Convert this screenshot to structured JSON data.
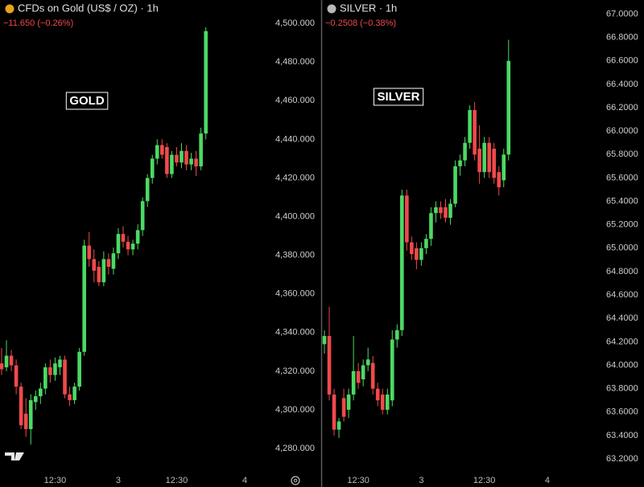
{
  "chart_data": [
    {
      "type": "candlestick",
      "title": "CFDs on Gold (US$ / OZ) · 1h",
      "subtitle": "−11.650 (−0.26%)",
      "annotation": "GOLD",
      "icon_color": "#e8a21a",
      "up_color": "#4cd964",
      "down_color": "#f0494c",
      "categories": [
        null,
        null,
        null,
        null,
        null,
        null,
        null,
        null,
        null,
        null,
        null,
        "12:30",
        null,
        null,
        null,
        null,
        null,
        null,
        null,
        null,
        null,
        null,
        null,
        null,
        "3",
        null,
        null,
        null,
        null,
        null,
        null,
        null,
        null,
        null,
        null,
        null,
        "12:30",
        null,
        null,
        null,
        null,
        null,
        null,
        null,
        null,
        null,
        null,
        null,
        null,
        null,
        "4"
      ],
      "open": [
        4324,
        4322,
        4328,
        4323,
        4312,
        4298,
        4290,
        4304,
        4307,
        4311,
        4322,
        4318,
        4322,
        4326,
        4308,
        4305,
        4312,
        4330,
        4385,
        4378,
        4374,
        4366,
        4378,
        4373,
        4381,
        4391,
        4387,
        4383,
        4386,
        4393,
        4408,
        4420,
        4430,
        4437,
        4436,
        4422,
        4432,
        4428,
        4434,
        4427,
        4430,
        4426,
        4443,
        null,
        null,
        null,
        null,
        null,
        null,
        null,
        null
      ],
      "high": [
        4332,
        4336,
        4331,
        4326,
        4314,
        4306,
        4308,
        4310,
        4314,
        4324,
        4326,
        4327,
        4328,
        4328,
        4312,
        4314,
        4332,
        4388,
        4392,
        4383,
        4377,
        4382,
        4381,
        4384,
        4394,
        4395,
        4390,
        4388,
        4396,
        4410,
        4422,
        4432,
        4440,
        4440,
        4438,
        4434,
        4436,
        4438,
        4437,
        4433,
        4434,
        4446,
        4498,
        null,
        null,
        null,
        null,
        null,
        null,
        null,
        null
      ],
      "low": [
        4318,
        4320,
        4320,
        4308,
        4290,
        4286,
        4282,
        4300,
        4303,
        4308,
        4314,
        4315,
        4318,
        4306,
        4302,
        4303,
        4310,
        4328,
        4374,
        4366,
        4364,
        4364,
        4370,
        4370,
        4378,
        4384,
        4380,
        4380,
        4383,
        4390,
        4405,
        4417,
        4427,
        4430,
        4420,
        4420,
        4426,
        4425,
        4424,
        4424,
        4421,
        4424,
        4440,
        null,
        null,
        null,
        null,
        null,
        null,
        null,
        null
      ],
      "close": [
        4321,
        4328,
        4323,
        4312,
        4292,
        4290,
        4305,
        4307,
        4311,
        4322,
        4318,
        4324,
        4326,
        4308,
        4305,
        4312,
        4330,
        4385,
        4378,
        4372,
        4366,
        4378,
        4374,
        4381,
        4391,
        4387,
        4383,
        4386,
        4393,
        4408,
        4420,
        4430,
        4437,
        4432,
        4422,
        4432,
        4428,
        4434,
        4427,
        4430,
        4426,
        4443,
        4496,
        null,
        null,
        null,
        null,
        null,
        null,
        null,
        null
      ],
      "ylim": [
        4266.7,
        4512.1
      ],
      "yticks": [
        {
          "value": 4280,
          "label": "4,280.000"
        },
        {
          "value": 4300,
          "label": "4,300.000"
        },
        {
          "value": 4320,
          "label": "4,320.000"
        },
        {
          "value": 4340,
          "label": "4,340.000"
        },
        {
          "value": 4360,
          "label": "4,360.000"
        },
        {
          "value": 4380,
          "label": "4,380.000"
        },
        {
          "value": 4400,
          "label": "4,400.000"
        },
        {
          "value": 4420,
          "label": "4,420.000"
        },
        {
          "value": 4440,
          "label": "4,440.000"
        },
        {
          "value": 4460,
          "label": "4,460.000"
        },
        {
          "value": 4480,
          "label": "4,480.000"
        },
        {
          "value": 4500,
          "label": "4,500.000"
        }
      ]
    },
    {
      "type": "candlestick",
      "title": "SILVER · 1h",
      "subtitle": "−0.2508 (−0.38%)",
      "annotation": "SILVER",
      "icon_color": "#b8b8b8",
      "up_color": "#4cd964",
      "down_color": "#f0494c",
      "categories": [
        null,
        null,
        null,
        null,
        null,
        null,
        null,
        "12:30",
        null,
        null,
        null,
        null,
        null,
        null,
        null,
        null,
        null,
        null,
        null,
        null,
        "3",
        null,
        null,
        null,
        null,
        null,
        null,
        null,
        null,
        null,
        null,
        null,
        null,
        "12:30",
        null,
        null,
        null,
        null,
        null,
        null,
        null,
        null,
        null,
        null,
        null,
        null,
        "4"
      ],
      "open": [
        64.18,
        64.25,
        63.75,
        63.45,
        63.72,
        63.62,
        63.75,
        63.95,
        63.88,
        64.0,
        64.02,
        63.8,
        63.75,
        63.62,
        63.7,
        64.22,
        64.3,
        65.45,
        65.05,
        65.0,
        64.9,
        65.0,
        65.08,
        65.3,
        65.35,
        65.35,
        65.26,
        65.38,
        65.7,
        65.75,
        65.9,
        66.18,
        65.85,
        65.65,
        65.9,
        65.85,
        65.65,
        65.58,
        65.8,
        null,
        null,
        null,
        null,
        null,
        null,
        null,
        null
      ],
      "high": [
        64.3,
        64.5,
        63.8,
        63.55,
        63.8,
        63.8,
        64.25,
        64.02,
        64.05,
        64.15,
        64.08,
        63.85,
        63.8,
        63.8,
        64.3,
        64.35,
        65.5,
        65.5,
        65.1,
        65.05,
        65.05,
        65.12,
        65.35,
        65.4,
        65.4,
        65.42,
        65.42,
        65.75,
        65.8,
        65.95,
        66.22,
        66.25,
        66.05,
        65.95,
        65.95,
        65.9,
        65.7,
        65.85,
        66.78,
        null,
        null,
        null,
        null,
        null,
        null,
        null,
        null
      ],
      "low": [
        64.1,
        63.7,
        63.4,
        63.38,
        63.52,
        63.55,
        63.7,
        63.8,
        63.82,
        63.95,
        63.75,
        63.65,
        63.58,
        63.58,
        63.65,
        64.15,
        64.25,
        64.98,
        64.9,
        64.82,
        64.85,
        64.95,
        65.02,
        65.22,
        65.25,
        65.22,
        65.2,
        65.35,
        65.62,
        65.7,
        65.85,
        65.75,
        65.55,
        65.6,
        65.6,
        65.55,
        65.45,
        65.52,
        65.75,
        null,
        null,
        null,
        null,
        null,
        null,
        null,
        null
      ],
      "close": [
        64.25,
        63.75,
        63.45,
        63.52,
        63.56,
        63.75,
        63.95,
        63.85,
        64.0,
        64.05,
        63.8,
        63.7,
        63.62,
        63.75,
        64.22,
        64.3,
        65.45,
        65.05,
        64.95,
        64.9,
        65.0,
        65.08,
        65.3,
        65.35,
        65.3,
        65.26,
        65.38,
        65.7,
        65.75,
        65.9,
        66.18,
        65.8,
        65.65,
        65.9,
        65.65,
        65.6,
        65.52,
        65.8,
        66.6,
        null,
        null,
        null,
        null,
        null,
        null,
        null,
        null
      ],
      "ylim": [
        63.07,
        67.12
      ],
      "yticks": [
        {
          "value": 63.2,
          "label": "63.2000"
        },
        {
          "value": 63.4,
          "label": "63.4000"
        },
        {
          "value": 63.6,
          "label": "63.6000"
        },
        {
          "value": 63.8,
          "label": "63.8000"
        },
        {
          "value": 64.0,
          "label": "64.0000"
        },
        {
          "value": 64.2,
          "label": "64.2000"
        },
        {
          "value": 64.4,
          "label": "64.4000"
        },
        {
          "value": 64.6,
          "label": "64.6000"
        },
        {
          "value": 64.8,
          "label": "64.8000"
        },
        {
          "value": 65.0,
          "label": "65.0000"
        },
        {
          "value": 65.2,
          "label": "65.2000"
        },
        {
          "value": 65.4,
          "label": "65.4000"
        },
        {
          "value": 65.6,
          "label": "65.6000"
        },
        {
          "value": 65.8,
          "label": "65.8000"
        },
        {
          "value": 66.0,
          "label": "66.0000"
        },
        {
          "value": 66.2,
          "label": "66.2000"
        },
        {
          "value": 66.4,
          "label": "66.4000"
        },
        {
          "value": 66.6,
          "label": "66.6000"
        },
        {
          "value": 66.8,
          "label": "66.8000"
        },
        {
          "value": 67.0,
          "label": "67.0000"
        }
      ]
    }
  ]
}
